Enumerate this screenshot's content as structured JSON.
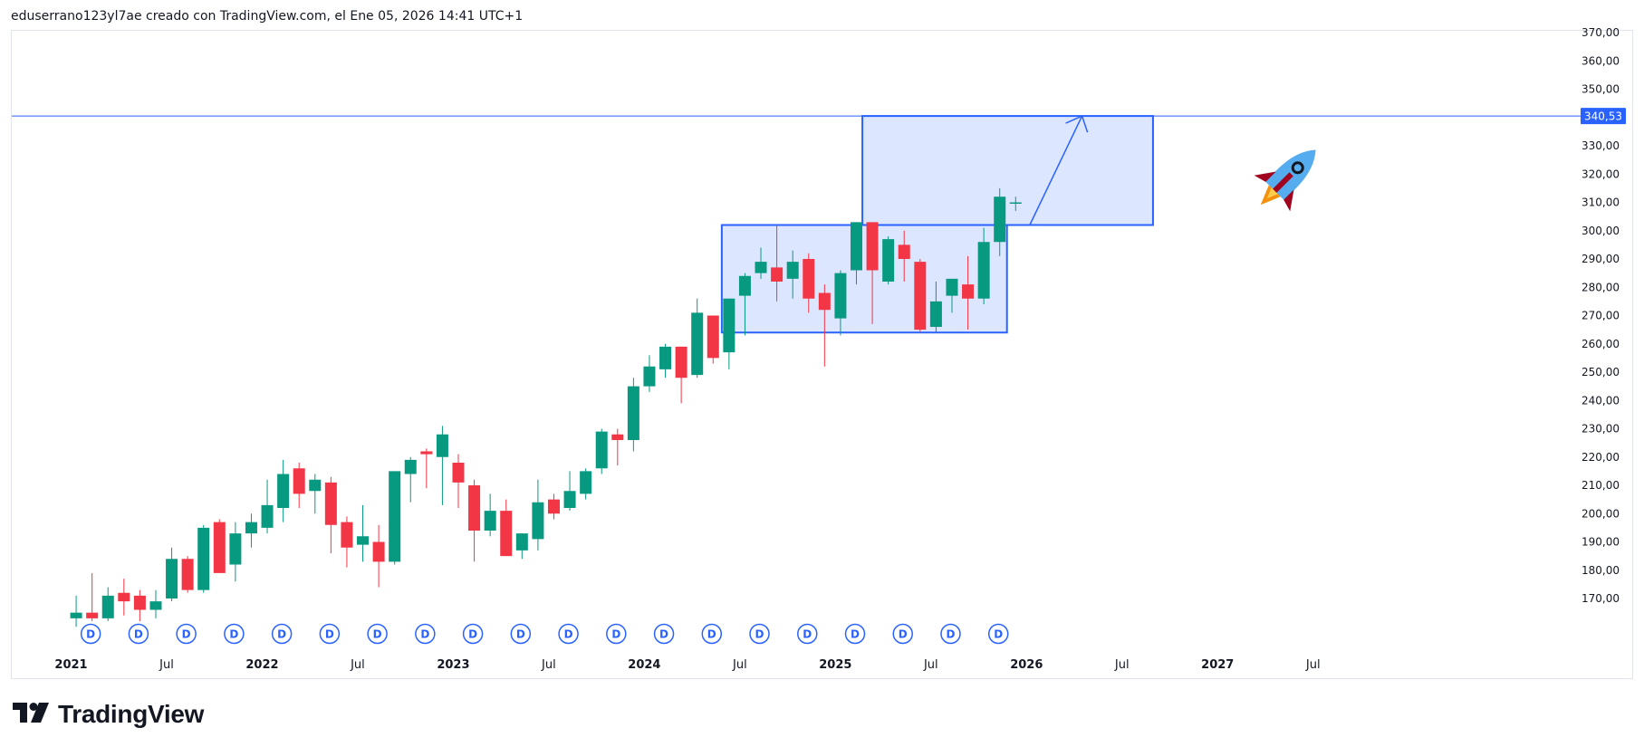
{
  "header": {
    "caption": "eduserrano123yl7ae creado con TradingView.com, el Ene 05, 2026 14:41 UTC+1"
  },
  "brand": {
    "name": "TradingView",
    "logo_icon": "tradingview-logo-icon"
  },
  "colors": {
    "up": "#089981",
    "down": "#f23645",
    "accent": "#2962ff",
    "box_fill": "#d6e2ff"
  },
  "chart_data": {
    "type": "candlestick",
    "interval": "monthly",
    "price_axis": {
      "side": "right",
      "ticks": [
        "170,00",
        "180,00",
        "190,00",
        "200,00",
        "210,00",
        "220,00",
        "230,00",
        "240,00",
        "250,00",
        "260,00",
        "270,00",
        "280,00",
        "290,00",
        "300,00",
        "310,00",
        "320,00",
        "330,00",
        "340,00",
        "350,00",
        "360,00",
        "370,00"
      ]
    },
    "time_axis": [
      {
        "label": "2021",
        "year": true,
        "x": "2021-01"
      },
      {
        "label": "Jul",
        "year": false,
        "x": "2021-07"
      },
      {
        "label": "2022",
        "year": true,
        "x": "2022-01"
      },
      {
        "label": "Jul",
        "year": false,
        "x": "2022-07"
      },
      {
        "label": "2023",
        "year": true,
        "x": "2023-01"
      },
      {
        "label": "Jul",
        "year": false,
        "x": "2023-07"
      },
      {
        "label": "2024",
        "year": true,
        "x": "2024-01"
      },
      {
        "label": "Jul",
        "year": false,
        "x": "2024-07"
      },
      {
        "label": "2025",
        "year": true,
        "x": "2025-01"
      },
      {
        "label": "Jul",
        "year": false,
        "x": "2025-07"
      },
      {
        "label": "2026",
        "year": true,
        "x": "2026-01"
      },
      {
        "label": "Jul",
        "year": false,
        "x": "2026-07"
      },
      {
        "label": "2027",
        "year": true,
        "x": "2027-01"
      },
      {
        "label": "Jul",
        "year": false,
        "x": "2027-07"
      }
    ],
    "candles": [
      {
        "t": "2021-02",
        "o": 163,
        "h": 171,
        "l": 160,
        "c": 165
      },
      {
        "t": "2021-03",
        "o": 165,
        "h": 179,
        "l": 162,
        "c": 163
      },
      {
        "t": "2021-04",
        "o": 163,
        "h": 174,
        "l": 162,
        "c": 171
      },
      {
        "t": "2021-05",
        "o": 172,
        "h": 177,
        "l": 164,
        "c": 169
      },
      {
        "t": "2021-06",
        "o": 171,
        "h": 173,
        "l": 162,
        "c": 166
      },
      {
        "t": "2021-07",
        "o": 166,
        "h": 173,
        "l": 163,
        "c": 169
      },
      {
        "t": "2021-08",
        "o": 170,
        "h": 188,
        "l": 169,
        "c": 184
      },
      {
        "t": "2021-09",
        "o": 184,
        "h": 185,
        "l": 172,
        "c": 173
      },
      {
        "t": "2021-10",
        "o": 173,
        "h": 196,
        "l": 172,
        "c": 195
      },
      {
        "t": "2021-11",
        "o": 197,
        "h": 198,
        "l": 179,
        "c": 179
      },
      {
        "t": "2021-12",
        "o": 182,
        "h": 197,
        "l": 176,
        "c": 193
      },
      {
        "t": "2022-01",
        "o": 193,
        "h": 200,
        "l": 188,
        "c": 197
      },
      {
        "t": "2022-02",
        "o": 195,
        "h": 212,
        "l": 193,
        "c": 203
      },
      {
        "t": "2022-03",
        "o": 202,
        "h": 219,
        "l": 197,
        "c": 214
      },
      {
        "t": "2022-04",
        "o": 216,
        "h": 218,
        "l": 202,
        "c": 207
      },
      {
        "t": "2022-05",
        "o": 208,
        "h": 214,
        "l": 200,
        "c": 212
      },
      {
        "t": "2022-06",
        "o": 211,
        "h": 213,
        "l": 186,
        "c": 196
      },
      {
        "t": "2022-07",
        "o": 197,
        "h": 199,
        "l": 181,
        "c": 188
      },
      {
        "t": "2022-08",
        "o": 189,
        "h": 203,
        "l": 183,
        "c": 192
      },
      {
        "t": "2022-09",
        "o": 190,
        "h": 196,
        "l": 174,
        "c": 183
      },
      {
        "t": "2022-10",
        "o": 183,
        "h": 215,
        "l": 182,
        "c": 215
      },
      {
        "t": "2022-11",
        "o": 214,
        "h": 220,
        "l": 204,
        "c": 219
      },
      {
        "t": "2022-12",
        "o": 222,
        "h": 223,
        "l": 209,
        "c": 221
      },
      {
        "t": "2023-01",
        "o": 220,
        "h": 231,
        "l": 203,
        "c": 228
      },
      {
        "t": "2023-02",
        "o": 218,
        "h": 221,
        "l": 202,
        "c": 211
      },
      {
        "t": "2023-03",
        "o": 210,
        "h": 212,
        "l": 183,
        "c": 194
      },
      {
        "t": "2023-04",
        "o": 194,
        "h": 207,
        "l": 192,
        "c": 201
      },
      {
        "t": "2023-05",
        "o": 201,
        "h": 205,
        "l": 185,
        "c": 185
      },
      {
        "t": "2023-06",
        "o": 187,
        "h": 193,
        "l": 184,
        "c": 193
      },
      {
        "t": "2023-07",
        "o": 191,
        "h": 212,
        "l": 187,
        "c": 204
      },
      {
        "t": "2023-08",
        "o": 205,
        "h": 207,
        "l": 198,
        "c": 200
      },
      {
        "t": "2023-09",
        "o": 202,
        "h": 215,
        "l": 201,
        "c": 208
      },
      {
        "t": "2023-10",
        "o": 207,
        "h": 216,
        "l": 205,
        "c": 215
      },
      {
        "t": "2023-11",
        "o": 216,
        "h": 230,
        "l": 214,
        "c": 229
      },
      {
        "t": "2023-12",
        "o": 228,
        "h": 230,
        "l": 217,
        "c": 226
      },
      {
        "t": "2024-01",
        "o": 226,
        "h": 248,
        "l": 222,
        "c": 245
      },
      {
        "t": "2024-02",
        "o": 245,
        "h": 256,
        "l": 243,
        "c": 252
      },
      {
        "t": "2024-03",
        "o": 251,
        "h": 260,
        "l": 248,
        "c": 259
      },
      {
        "t": "2024-04",
        "o": 259,
        "h": 259,
        "l": 239,
        "c": 248
      },
      {
        "t": "2024-05",
        "o": 249,
        "h": 276,
        "l": 248,
        "c": 271
      },
      {
        "t": "2024-06",
        "o": 270,
        "h": 270,
        "l": 253,
        "c": 255
      },
      {
        "t": "2024-07",
        "o": 257,
        "h": 276,
        "l": 251,
        "c": 276
      },
      {
        "t": "2024-08",
        "o": 277,
        "h": 285,
        "l": 263,
        "c": 284
      },
      {
        "t": "2024-09",
        "o": 285,
        "h": 294,
        "l": 283,
        "c": 289
      },
      {
        "t": "2024-10",
        "o": 287,
        "h": 302,
        "l": 275,
        "c": 282
      },
      {
        "t": "2024-11",
        "o": 283,
        "h": 293,
        "l": 276,
        "c": 289
      },
      {
        "t": "2024-12",
        "o": 290,
        "h": 292,
        "l": 271,
        "c": 276
      },
      {
        "t": "2025-01",
        "o": 278,
        "h": 281,
        "l": 252,
        "c": 272
      },
      {
        "t": "2025-02",
        "o": 269,
        "h": 286,
        "l": 263,
        "c": 285
      },
      {
        "t": "2025-03",
        "o": 286,
        "h": 303,
        "l": 281,
        "c": 303
      },
      {
        "t": "2025-04",
        "o": 303,
        "h": 303,
        "l": 267,
        "c": 286
      },
      {
        "t": "2025-05",
        "o": 282,
        "h": 298,
        "l": 281,
        "c": 297
      },
      {
        "t": "2025-06",
        "o": 295,
        "h": 300,
        "l": 282,
        "c": 290
      },
      {
        "t": "2025-07",
        "o": 289,
        "h": 290,
        "l": 264,
        "c": 265
      },
      {
        "t": "2025-08",
        "o": 266,
        "h": 282,
        "l": 264,
        "c": 275
      },
      {
        "t": "2025-09",
        "o": 277,
        "h": 283,
        "l": 271,
        "c": 283
      },
      {
        "t": "2025-10",
        "o": 281,
        "h": 291,
        "l": 265,
        "c": 276
      },
      {
        "t": "2025-11",
        "o": 276,
        "h": 301,
        "l": 274,
        "c": 296
      },
      {
        "t": "2025-12",
        "o": 296,
        "h": 315,
        "l": 291,
        "c": 312
      },
      {
        "t": "2026-01",
        "o": 310,
        "h": 312,
        "l": 307,
        "c": 310
      }
    ],
    "dividends": [
      "2021-03",
      "2021-06",
      "2021-09",
      "2021-12",
      "2022-03",
      "2022-06",
      "2022-09",
      "2022-12",
      "2023-03",
      "2023-06",
      "2023-09",
      "2023-12",
      "2024-03",
      "2024-06",
      "2024-09",
      "2024-12",
      "2025-03",
      "2025-06",
      "2025-09",
      "2025-12"
    ],
    "dividend_marker": "D",
    "price_line": {
      "value": 340.53,
      "label": "340,53"
    },
    "drawings": {
      "range_box": {
        "t_start": "2024-07",
        "t_end": "2025-12",
        "price_top": 302,
        "price_bottom": 264
      },
      "target_box": {
        "t_start": "2025-04",
        "t_end": "2026-09",
        "price_top": 340.53,
        "price_bottom": 302
      },
      "arrow": {
        "t_start": "2026-02",
        "p_start": 302,
        "t_end": "2026-05",
        "p_end": 340.53
      },
      "rocket_icon": "rocket-icon"
    }
  }
}
